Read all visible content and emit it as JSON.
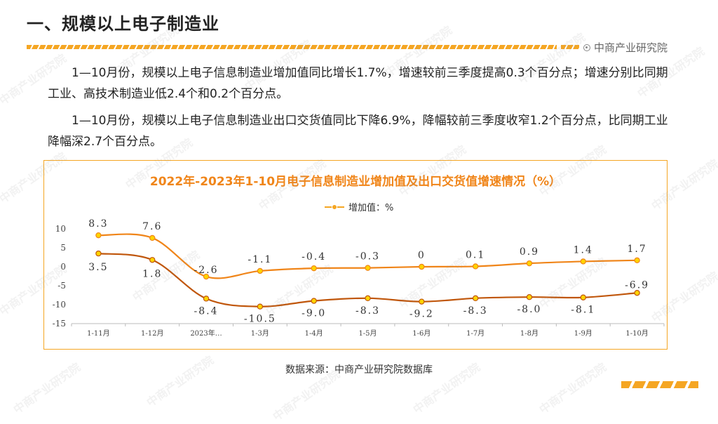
{
  "header": {
    "title": "一、规模以上电子制造业",
    "brand": "中商产业研究院"
  },
  "paragraphs": [
    "1—10月份，规模以上电子信息制造业增加值同比增长1.7%，增速较前三季度提高0.3个百分点；增速分别比同期工业、高技术制造业低2.4个和0.2个百分点。",
    "1—10月份，规模以上电子信息制造业出口交货值同比下降6.9%，降幅较前三季度收窄1.2个百分点，比同期工业降幅深2.7个百分点。"
  ],
  "source": "数据来源：中商产业研究院数据库",
  "watermark": "中商产业研究院",
  "chart_data": {
    "type": "line",
    "title": "2022年-2023年1-10月电子信息制造业增加值及出口交货值增速情况（%）",
    "categories": [
      "1-11月",
      "1-12月",
      "2023年…",
      "1-3月",
      "1-4月",
      "1-5月",
      "1-6月",
      "1-7月",
      "1-8月",
      "1-9月",
      "1-10月"
    ],
    "series": [
      {
        "name": "增加值：%",
        "values": [
          8.3,
          7.6,
          -2.6,
          -1.1,
          -0.4,
          -0.3,
          0,
          0.1,
          0.9,
          1.4,
          1.7
        ],
        "labels": [
          "8.3",
          "7.6",
          "-2.6",
          "-1.1",
          "-0.4",
          "-0.3",
          "0",
          "0.1",
          "0.9",
          "1.4",
          "1.7"
        ],
        "color": "#f08519",
        "marker": "#ffd400"
      },
      {
        "values": [
          3.5,
          1.8,
          -8.4,
          -10.5,
          -9.0,
          -8.3,
          -9.2,
          -8.3,
          -8.0,
          -8.1,
          -6.9
        ],
        "labels": [
          "3.5",
          "1.8",
          "-8.4",
          "-10.5",
          "-9.0",
          "-8.3",
          "-9.2",
          "-8.3",
          "-8.0",
          "-8.1",
          "-6.9"
        ],
        "color": "#c0560b",
        "marker": "#ffd400"
      }
    ],
    "y_ticks": [
      "10",
      "5",
      "0",
      "-5",
      "-10",
      "-15"
    ],
    "ylim": [
      -15,
      10
    ],
    "legend": "top-center"
  }
}
